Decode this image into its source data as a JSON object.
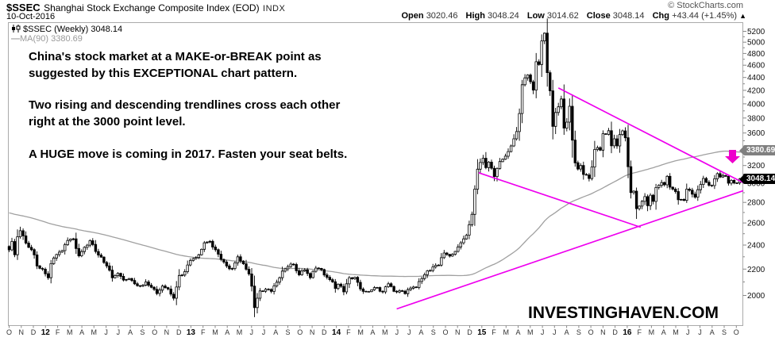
{
  "header": {
    "symbol": "$SSEC",
    "title": "Shanghai Stock Exchange Composite Index (EOD)",
    "exchange": "INDX",
    "credit": "© StockCharts.com",
    "date": "10-Oct-2016",
    "quote": {
      "open_label": "Open",
      "open": "3020.46",
      "high_label": "High",
      "high": "3048.24",
      "low_label": "Low",
      "low": "3014.62",
      "close_label": "Close",
      "close": "3048.14",
      "chg_label": "Chg",
      "chg": "+43.44 (+1.45%)",
      "chg_arrow": "▲"
    }
  },
  "legend": {
    "series": "$SSEC (Weekly) 3048.14",
    "ma": "MA(90) 3380.69"
  },
  "annotation": {
    "lines": [
      "China's stock market at a MAKE-or-BREAK point as",
      "suggested by this EXCEPTIONAL chart pattern.",
      "Two rising and descending trendlines cross each other",
      "right at the 3000 point level.",
      "A HUGE move is coming in 2017. Fasten your seat belts."
    ]
  },
  "watermark": "INVESTINGHAVEN.COM",
  "price_bubbles": {
    "ma": "3380.69",
    "last": "3048.14"
  },
  "colors": {
    "trendline": "#ee00ee",
    "arrow": "#ee00cc",
    "ma_line": "#a0a0a0",
    "candle": "#000000",
    "bubble_ma_bg": "#808080",
    "bubble_last_bg": "#000000",
    "axis": "#888888"
  },
  "chart_data": {
    "type": "candlestick",
    "timeframe": "weekly",
    "title": "$SSEC Shanghai Stock Exchange Composite Index (EOD) INDX",
    "y_axis": {
      "min": 2000,
      "max": 5200,
      "tick_step": 200,
      "minor_step": 100,
      "scale": "log",
      "side": "right"
    },
    "scale": {
      "p_ref": 2000,
      "y_ref": 372.5,
      "k": 348.5
    },
    "x_labels": [
      "O",
      "N",
      "D",
      "12",
      "F",
      "M",
      "A",
      "M",
      "J",
      "J",
      "A",
      "S",
      "O",
      "N",
      "D",
      "13",
      "F",
      "M",
      "A",
      "M",
      "J",
      "J",
      "A",
      "S",
      "O",
      "N",
      "D",
      "14",
      "F",
      "M",
      "A",
      "M",
      "J",
      "J",
      "A",
      "S",
      "O",
      "N",
      "D",
      "15",
      "F",
      "M",
      "A",
      "M",
      "J",
      "J",
      "A",
      "S",
      "O",
      "N",
      "D",
      "16",
      "F",
      "M",
      "A",
      "M",
      "J",
      "J",
      "A",
      "S",
      "O"
    ],
    "grid": false,
    "last_close": 3048.14,
    "ma_period": 90,
    "ma_last": 3380.69,
    "ma_padding": {
      "count": 89,
      "from": 3000,
      "to": 2400
    },
    "close_anchors": [
      [
        0,
        2359
      ],
      [
        1,
        2431
      ],
      [
        2,
        2317
      ],
      [
        3,
        2473
      ],
      [
        4,
        2528
      ],
      [
        5,
        2481
      ],
      [
        6,
        2417
      ],
      [
        7,
        2380
      ],
      [
        8,
        2360
      ],
      [
        9,
        2316
      ],
      [
        10,
        2225
      ],
      [
        11,
        2205
      ],
      [
        12,
        2199
      ],
      [
        13,
        2163
      ],
      [
        14,
        2132
      ],
      [
        15,
        2244
      ],
      [
        16,
        2290
      ],
      [
        17,
        2319
      ],
      [
        19,
        2352
      ],
      [
        21,
        2440
      ],
      [
        23,
        2454
      ],
      [
        25,
        2308
      ],
      [
        27,
        2380
      ],
      [
        29,
        2438
      ],
      [
        31,
        2344
      ],
      [
        33,
        2297
      ],
      [
        35,
        2225
      ],
      [
        37,
        2132
      ],
      [
        39,
        2167
      ],
      [
        41,
        2114
      ],
      [
        43,
        2126
      ],
      [
        45,
        2086
      ],
      [
        47,
        2068
      ],
      [
        49,
        2100
      ],
      [
        51,
        2060
      ],
      [
        53,
        2014
      ],
      [
        55,
        2069
      ],
      [
        57,
        2047
      ],
      [
        59,
        1980
      ],
      [
        60,
        2062
      ],
      [
        61,
        2150
      ],
      [
        62,
        2153
      ],
      [
        63,
        2180
      ],
      [
        64,
        2233
      ],
      [
        65,
        2269
      ],
      [
        66,
        2285
      ],
      [
        68,
        2317
      ],
      [
        70,
        2419
      ],
      [
        72,
        2432
      ],
      [
        74,
        2360
      ],
      [
        76,
        2278
      ],
      [
        78,
        2225
      ],
      [
        80,
        2205
      ],
      [
        82,
        2300
      ],
      [
        84,
        2242
      ],
      [
        86,
        2162
      ],
      [
        87,
        2068
      ],
      [
        88,
        1914
      ],
      [
        89,
        1980
      ],
      [
        90,
        2033
      ],
      [
        92,
        2046
      ],
      [
        94,
        2029
      ],
      [
        96,
        2098
      ],
      [
        98,
        2184
      ],
      [
        100,
        2220
      ],
      [
        102,
        2237
      ],
      [
        104,
        2155
      ],
      [
        106,
        2194
      ],
      [
        108,
        2133
      ],
      [
        110,
        2208
      ],
      [
        112,
        2196
      ],
      [
        114,
        2136
      ],
      [
        116,
        2101
      ],
      [
        117,
        2051
      ],
      [
        118,
        2083
      ],
      [
        120,
        2026
      ],
      [
        122,
        2133
      ],
      [
        124,
        2135
      ],
      [
        126,
        2047
      ],
      [
        128,
        2027
      ],
      [
        130,
        2041
      ],
      [
        132,
        2058
      ],
      [
        134,
        2026
      ],
      [
        136,
        2086
      ],
      [
        138,
        2030
      ],
      [
        140,
        2035
      ],
      [
        142,
        2013
      ],
      [
        144,
        2054
      ],
      [
        146,
        2059
      ],
      [
        148,
        2126
      ],
      [
        150,
        2186
      ],
      [
        152,
        2217
      ],
      [
        154,
        2232
      ],
      [
        156,
        2332
      ],
      [
        158,
        2306
      ],
      [
        160,
        2345
      ],
      [
        162,
        2420
      ],
      [
        164,
        2487
      ],
      [
        166,
        2682
      ],
      [
        167,
        2938
      ],
      [
        168,
        3158
      ],
      [
        169,
        3235
      ],
      [
        170,
        3286
      ],
      [
        171,
        3176
      ],
      [
        172,
        3240
      ],
      [
        174,
        3075
      ],
      [
        176,
        3246
      ],
      [
        178,
        3310
      ],
      [
        180,
        3435
      ],
      [
        182,
        3618
      ],
      [
        183,
        3863
      ],
      [
        184,
        4287
      ],
      [
        185,
        4394
      ],
      [
        186,
        4441
      ],
      [
        187,
        4333
      ],
      [
        188,
        4205
      ],
      [
        189,
        4658
      ],
      [
        190,
        4612
      ],
      [
        191,
        5023
      ],
      [
        192,
        5166
      ],
      [
        193,
        4478
      ],
      [
        194,
        4193
      ],
      [
        195,
        3687
      ],
      [
        196,
        3877
      ],
      [
        197,
        3957
      ],
      [
        198,
        4071
      ],
      [
        199,
        3664
      ],
      [
        200,
        3744
      ],
      [
        201,
        3965
      ],
      [
        202,
        3508
      ],
      [
        203,
        3232
      ],
      [
        204,
        3160
      ],
      [
        205,
        3200
      ],
      [
        206,
        3098
      ],
      [
        207,
        3092
      ],
      [
        208,
        3053
      ],
      [
        209,
        3183
      ],
      [
        210,
        3391
      ],
      [
        211,
        3413
      ],
      [
        212,
        3383
      ],
      [
        213,
        3590
      ],
      [
        214,
        3581
      ],
      [
        215,
        3630
      ],
      [
        216,
        3436
      ],
      [
        217,
        3525
      ],
      [
        218,
        3435
      ],
      [
        219,
        3579
      ],
      [
        220,
        3628
      ],
      [
        221,
        3539
      ],
      [
        222,
        3186
      ],
      [
        223,
        2901
      ],
      [
        224,
        2917
      ],
      [
        225,
        2738
      ],
      [
        226,
        2763
      ],
      [
        228,
        2860
      ],
      [
        229,
        2767
      ],
      [
        230,
        2874
      ],
      [
        231,
        2810
      ],
      [
        232,
        2955
      ],
      [
        233,
        2979
      ],
      [
        234,
        3009
      ],
      [
        235,
        2985
      ],
      [
        236,
        3078
      ],
      [
        237,
        2959
      ],
      [
        238,
        2938
      ],
      [
        239,
        2913
      ],
      [
        240,
        2827
      ],
      [
        242,
        2821
      ],
      [
        243,
        2938
      ],
      [
        244,
        2927
      ],
      [
        245,
        2885
      ],
      [
        246,
        2854
      ],
      [
        247,
        2932
      ],
      [
        248,
        2988
      ],
      [
        249,
        3054
      ],
      [
        250,
        3012
      ],
      [
        251,
        2979
      ],
      [
        252,
        2976
      ],
      [
        253,
        3050
      ],
      [
        254,
        3108
      ],
      [
        255,
        3070
      ],
      [
        257,
        3078
      ],
      [
        258,
        3002
      ],
      [
        259,
        3033
      ],
      [
        260,
        3004
      ],
      [
        261,
        3004
      ],
      [
        262,
        3048.14
      ]
    ],
    "high_overrides": [
      [
        192,
        5178
      ]
    ],
    "low_overrides": [
      [
        88,
        1849
      ],
      [
        225,
        2638
      ]
    ],
    "trendlines": [
      {
        "kind": "descending-long",
        "from_week": 197,
        "from_price": 4237,
        "to_week": 263.3,
        "to_price": 3007
      },
      {
        "kind": "rising",
        "from_week": 139,
        "from_price": 1905,
        "to_week": 263.3,
        "to_price": 2922
      },
      {
        "kind": "descending-short",
        "from_week": 168.4,
        "from_price": 3118,
        "to_week": 226.5,
        "to_price": 2560
      }
    ],
    "arrow": {
      "x": 922.5,
      "top": 189,
      "neck": 197,
      "tip": 206,
      "shaft_half": 4.5,
      "head_half": 9.5
    }
  }
}
